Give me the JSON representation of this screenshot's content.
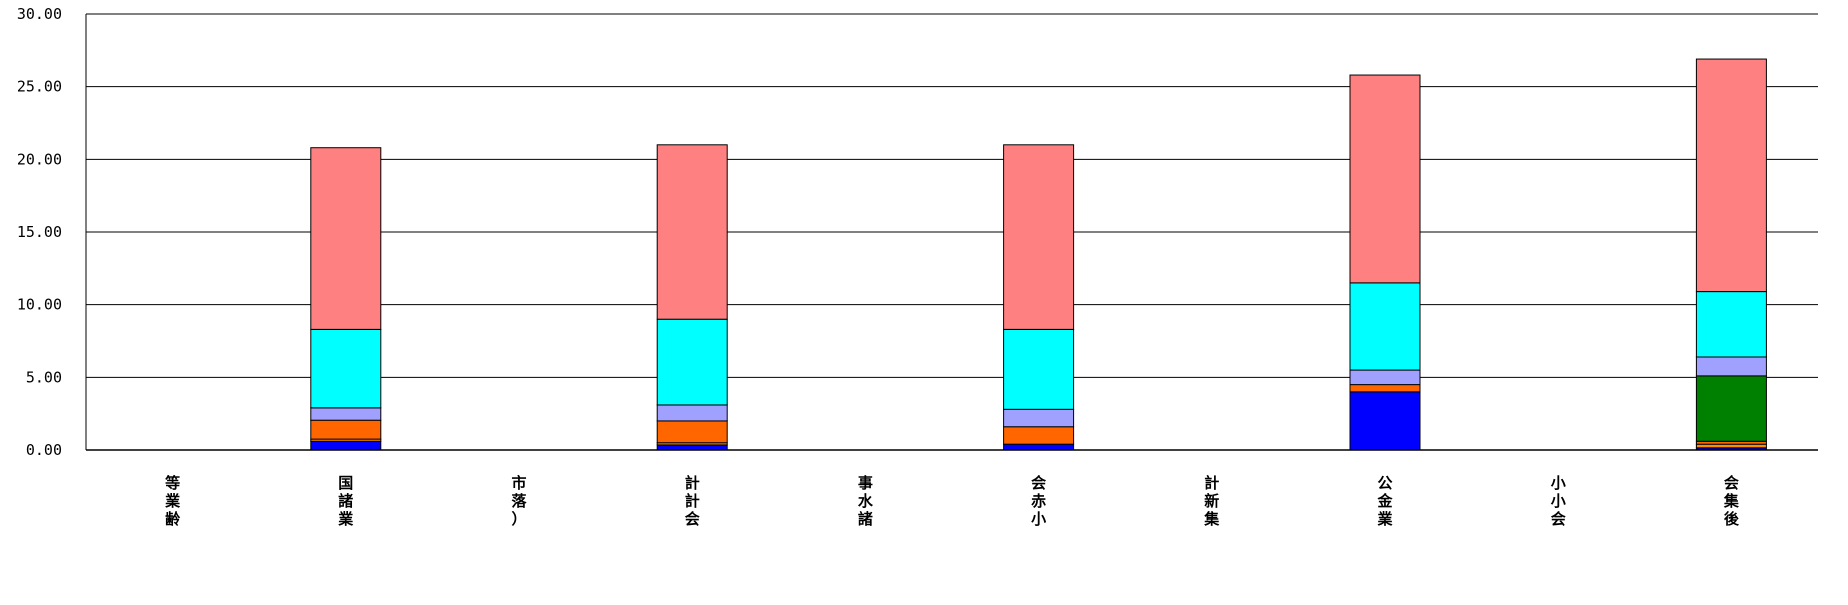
{
  "chart_data": {
    "type": "bar",
    "stacked": true,
    "categories": [
      "等業齢",
      "国諸業",
      "市落）",
      "計計会",
      "事水諸",
      "会赤小",
      "計新集",
      "公金業",
      "小小会",
      "会集後"
    ],
    "ylim": [
      0,
      30
    ],
    "yticks": [
      "0.00",
      "5.00",
      "10.00",
      "15.00",
      "20.00",
      "25.00",
      "30.00"
    ],
    "grid": true,
    "legend": "none",
    "series": [
      {
        "color": "#0000ff",
        "values": [
          0,
          0.6,
          0,
          0.35,
          0,
          0.4,
          0,
          4.0,
          0,
          0.15
        ]
      },
      {
        "color": "#ff8c00",
        "values": [
          0,
          0.15,
          0,
          0.15,
          0,
          0.0,
          0,
          0.0,
          0,
          0.25
        ]
      },
      {
        "color": "#ff6600",
        "values": [
          0,
          1.3,
          0,
          1.5,
          0,
          1.2,
          0,
          0.5,
          0,
          0.2
        ]
      },
      {
        "color": "#008000",
        "values": [
          0,
          0,
          0,
          0,
          0,
          0,
          0,
          0,
          0,
          4.5
        ]
      },
      {
        "color": "#a0a0ff",
        "values": [
          0,
          0.85,
          0,
          1.1,
          0,
          1.2,
          0,
          1.0,
          0,
          1.3
        ]
      },
      {
        "color": "#00ffff",
        "values": [
          0,
          5.4,
          0,
          5.9,
          0,
          5.5,
          0,
          6.0,
          0,
          4.5
        ]
      },
      {
        "color": "#ff8080",
        "values": [
          0,
          12.5,
          0,
          12.0,
          0,
          12.7,
          0,
          14.3,
          0,
          16.0
        ]
      }
    ]
  }
}
